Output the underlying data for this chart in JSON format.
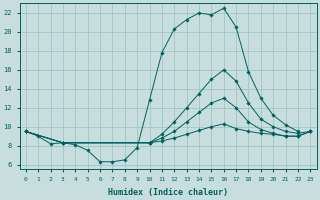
{
  "xlabel": "Humidex (Indice chaleur)",
  "bg_color": "#c8dede",
  "line_color": "#006060",
  "grid_color": "#a0c4c4",
  "xlim": [
    -0.5,
    23.5
  ],
  "ylim": [
    5.5,
    23.0
  ],
  "xticks": [
    0,
    1,
    2,
    3,
    4,
    5,
    6,
    7,
    8,
    9,
    10,
    11,
    12,
    13,
    14,
    15,
    16,
    17,
    18,
    19,
    20,
    21,
    22,
    23
  ],
  "yticks": [
    6,
    8,
    10,
    12,
    14,
    16,
    18,
    20,
    22
  ],
  "curve_peak_x": [
    0,
    1,
    2,
    3,
    4,
    5,
    6,
    7,
    8,
    9,
    10,
    11,
    12,
    13,
    14,
    15,
    16,
    17,
    18,
    19,
    20,
    21,
    22
  ],
  "curve_peak_y": [
    9.5,
    9.0,
    8.2,
    8.3,
    8.1,
    7.5,
    6.3,
    6.3,
    6.5,
    7.8,
    12.8,
    17.8,
    20.3,
    21.3,
    22.0,
    21.8,
    22.5,
    20.5,
    15.8,
    13.0,
    11.2,
    10.2,
    9.5
  ],
  "curve_upper_x": [
    0,
    3,
    10,
    11,
    12,
    13,
    14,
    15,
    16,
    17,
    18,
    19,
    20,
    21,
    22,
    23
  ],
  "curve_upper_y": [
    9.5,
    8.3,
    8.3,
    9.2,
    10.5,
    12.0,
    13.5,
    15.0,
    16.0,
    14.8,
    12.5,
    10.8,
    10.0,
    9.5,
    9.3,
    9.5
  ],
  "curve_mid_x": [
    0,
    3,
    10,
    11,
    12,
    13,
    14,
    15,
    16,
    17,
    18,
    19,
    20,
    21,
    22,
    23
  ],
  "curve_mid_y": [
    9.5,
    8.3,
    8.3,
    8.8,
    9.5,
    10.5,
    11.5,
    12.5,
    13.0,
    12.0,
    10.5,
    9.7,
    9.3,
    9.0,
    9.0,
    9.5
  ],
  "curve_flat_x": [
    0,
    3,
    10,
    11,
    12,
    13,
    14,
    15,
    16,
    17,
    18,
    19,
    20,
    21,
    22,
    23
  ],
  "curve_flat_y": [
    9.5,
    8.3,
    8.3,
    8.5,
    8.8,
    9.2,
    9.6,
    10.0,
    10.3,
    9.8,
    9.5,
    9.3,
    9.2,
    9.0,
    9.0,
    9.5
  ]
}
